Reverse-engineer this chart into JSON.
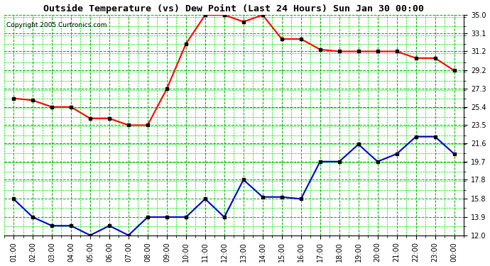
{
  "title": "Outside Temperature (vs) Dew Point (Last 24 Hours) Sun Jan 30 00:00",
  "copyright": "Copyright 2005 Curtronics.com",
  "x_labels": [
    "01:00",
    "02:00",
    "03:00",
    "04:00",
    "05:00",
    "06:00",
    "07:00",
    "08:00",
    "09:00",
    "10:00",
    "11:00",
    "12:00",
    "13:00",
    "14:00",
    "15:00",
    "16:00",
    "17:00",
    "18:00",
    "19:00",
    "20:00",
    "21:00",
    "22:00",
    "23:00",
    "00:00"
  ],
  "temp_data": [
    26.3,
    26.1,
    25.4,
    25.4,
    24.2,
    24.2,
    23.5,
    23.5,
    27.3,
    32.0,
    35.0,
    35.0,
    34.3,
    35.0,
    32.5,
    32.5,
    31.4,
    31.2,
    31.2,
    31.2,
    31.2,
    30.5,
    30.5,
    29.2
  ],
  "dew_data": [
    15.8,
    13.9,
    13.0,
    13.0,
    12.0,
    13.0,
    12.0,
    13.9,
    13.9,
    13.9,
    15.8,
    13.9,
    17.8,
    16.0,
    16.0,
    15.8,
    19.7,
    19.7,
    21.5,
    19.7,
    20.5,
    22.3,
    22.3,
    20.5
  ],
  "temp_color": "#ff0000",
  "dew_color": "#0000cc",
  "grid_color_major": "#00aa00",
  "grid_color_minor": "#00dd00",
  "bg_color": "#ffffff",
  "plot_bg_color": "#ffffff",
  "y_ticks": [
    12.0,
    13.9,
    15.8,
    17.8,
    19.7,
    21.6,
    23.5,
    25.4,
    27.3,
    29.2,
    31.2,
    33.1,
    35.0
  ],
  "y_min": 12.0,
  "y_max": 35.0,
  "marker": "s",
  "marker_size": 3,
  "line_width": 1.5
}
